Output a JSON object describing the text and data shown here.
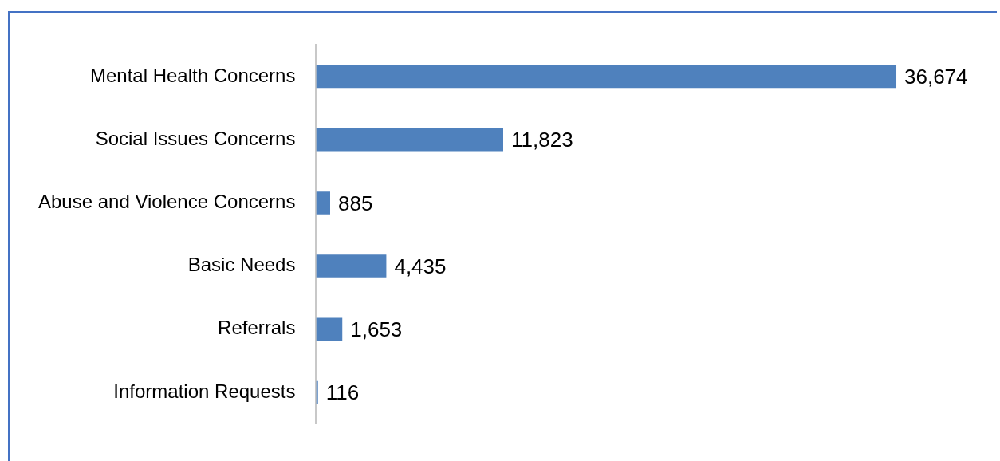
{
  "chart_data": {
    "type": "bar",
    "orientation": "horizontal",
    "categories": [
      "Mental Health Concerns",
      "Social Issues Concerns",
      "Abuse and Violence Concerns",
      "Basic Needs",
      "Referrals",
      "Information Requests"
    ],
    "values": [
      36674,
      11823,
      885,
      4435,
      1653,
      116
    ],
    "value_labels": [
      "36,674",
      "11,823",
      "885",
      "4,435",
      "1,653",
      "116"
    ],
    "color": "#4f81bd"
  }
}
